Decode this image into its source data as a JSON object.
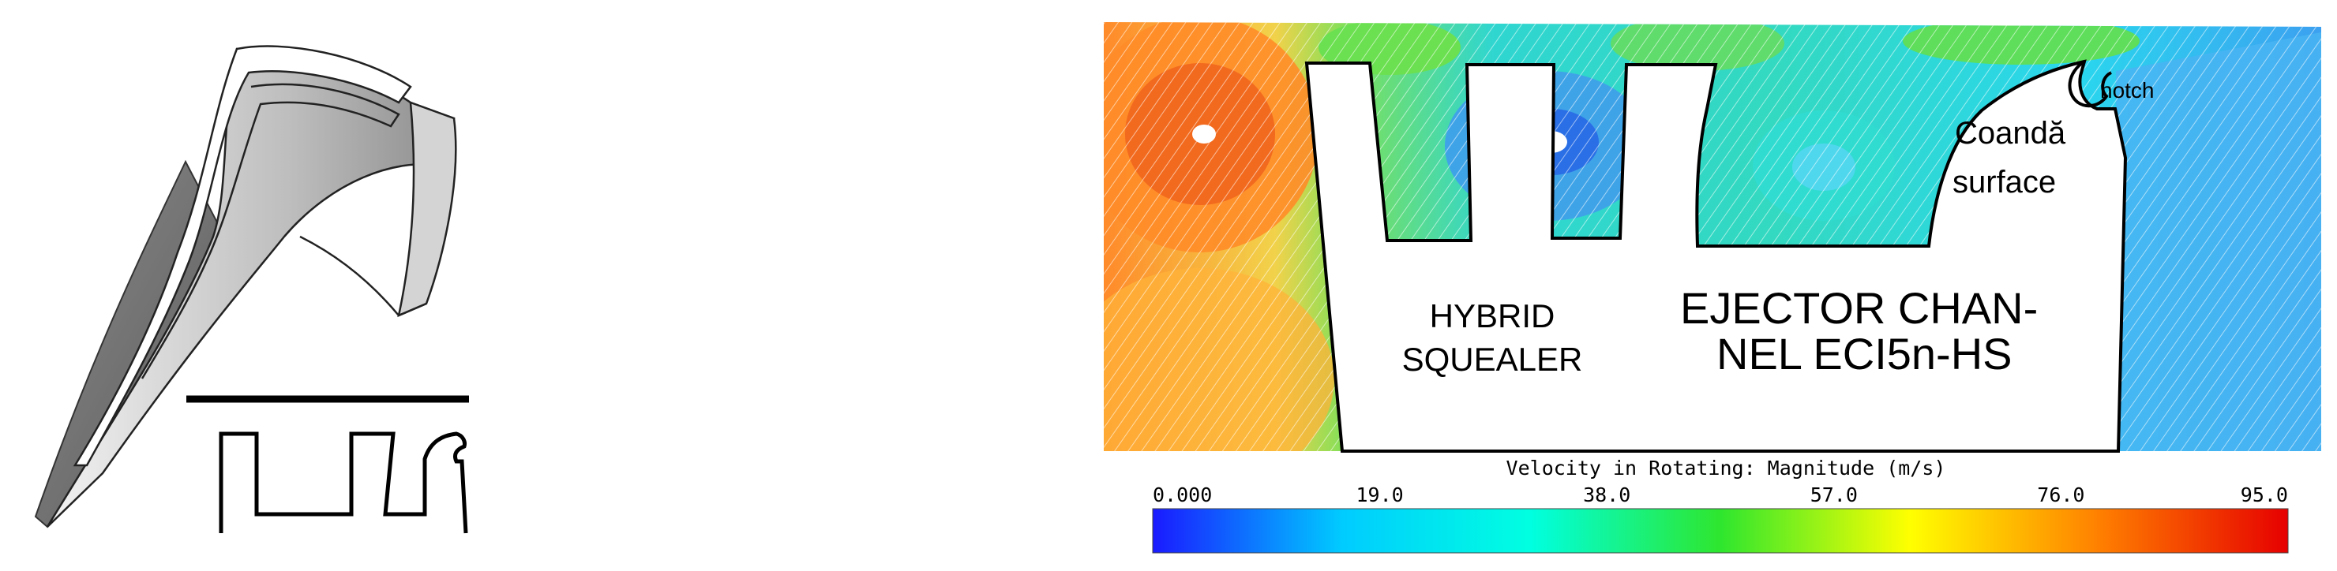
{
  "labels": {
    "notch": "notch",
    "coanda_line1": "Coandă",
    "coanda_line2": "surface",
    "hybrid_line1": "HYBRID",
    "hybrid_line2": "SQUEALER",
    "ejector_line1": "EJECTOR CHAN-",
    "ejector_line2": "NEL ECI5n-HS"
  },
  "colorbar": {
    "title": "Velocity in Rotating: Magnitude (m/s)",
    "ticks": [
      "0.000",
      "19.0",
      "38.0",
      "57.0",
      "76.0",
      "95.0"
    ],
    "min": 0,
    "max": 95,
    "colors": [
      "#1a1aff",
      "#00ccff",
      "#00ffe0",
      "#2ee62e",
      "#ffff00",
      "#ff8000",
      "#e60000"
    ]
  }
}
